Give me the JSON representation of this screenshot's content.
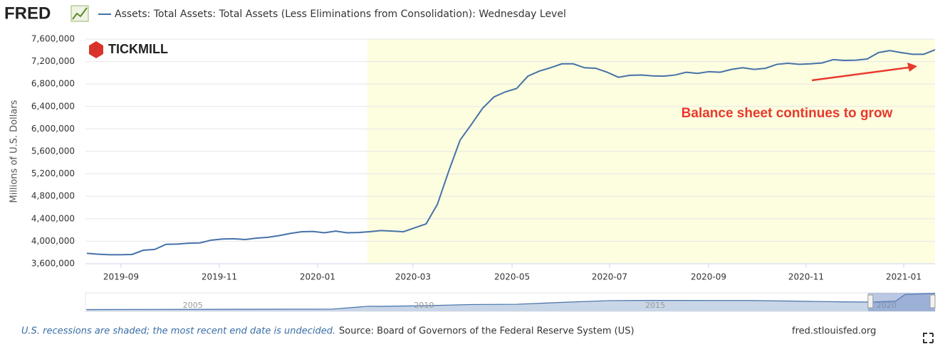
{
  "header": {
    "logo": "FRED",
    "brand": "TICKMILL"
  },
  "chart_data": {
    "type": "line",
    "y_label": "Millions of U.S. Dollars",
    "annotation": "Balance sheet continues to grow",
    "series": [
      {
        "name": "Assets: Total Assets: Total Assets (Less Eliminations from Consolidation): Wednesday Level",
        "color": "#4572a7",
        "values": [
          3785000,
          3770000,
          3760000,
          3760000,
          3765000,
          3840000,
          3855000,
          3945000,
          3950000,
          3965000,
          3970000,
          4020000,
          4040000,
          4045000,
          4030000,
          4055000,
          4070000,
          4100000,
          4140000,
          4170000,
          4175000,
          4150000,
          4180000,
          4150000,
          4155000,
          4170000,
          4190000,
          4180000,
          4170000,
          4240000,
          4310000,
          4660000,
          5250000,
          5800000,
          6080000,
          6370000,
          6570000,
          6660000,
          6720000,
          6940000,
          7030000,
          7090000,
          7160000,
          7160000,
          7090000,
          7080000,
          7010000,
          6920000,
          6955000,
          6960000,
          6945000,
          6940000,
          6960000,
          7010000,
          6990000,
          7020000,
          7010000,
          7060000,
          7090000,
          7060000,
          7080000,
          7150000,
          7170000,
          7150000,
          7160000,
          7175000,
          7235000,
          7220000,
          7225000,
          7245000,
          7360000,
          7395000,
          7360000,
          7330000,
          7330000,
          7410000
        ]
      }
    ],
    "xlim": [
      0,
      75
    ],
    "xticks": [
      {
        "value": 3.02,
        "label": "2019-09"
      },
      {
        "value": 11.71,
        "label": "2019-11"
      },
      {
        "value": 20.4,
        "label": "2020-01"
      },
      {
        "value": 28.84,
        "label": "2020-03"
      },
      {
        "value": 37.6,
        "label": "2020-05"
      },
      {
        "value": 46.22,
        "label": "2020-07"
      },
      {
        "value": 54.97,
        "label": "2020-09"
      },
      {
        "value": 63.6,
        "label": "2020-11"
      },
      {
        "value": 72.23,
        "label": "2021-01"
      }
    ],
    "ylim": [
      3600000,
      7600000
    ],
    "yticks": [
      {
        "value": 3600000,
        "label": "3,600,000"
      },
      {
        "value": 4000000,
        "label": "4,000,000"
      },
      {
        "value": 4400000,
        "label": "4,400,000"
      },
      {
        "value": 4800000,
        "label": "4,800,000"
      },
      {
        "value": 5200000,
        "label": "5,200,000"
      },
      {
        "value": 5600000,
        "label": "5,600,000"
      },
      {
        "value": 6000000,
        "label": "6,000,000"
      },
      {
        "value": 6400000,
        "label": "6,400,000"
      },
      {
        "value": 6800000,
        "label": "6,800,000"
      },
      {
        "value": 7200000,
        "label": "7,200,000"
      },
      {
        "value": 7600000,
        "label": "7,600,000"
      }
    ],
    "grid": true,
    "shaded": {
      "start": 24.81,
      "end": 75,
      "color": "#fdfde0"
    }
  },
  "navigator": {
    "x": [
      2002.7,
      2004,
      2006,
      2008,
      2008.8,
      2009,
      2010,
      2011,
      2012,
      2013,
      2014,
      2015,
      2016,
      2017,
      2018,
      2019,
      2019.7,
      2020.2,
      2020.4,
      2021,
      2021.05
    ],
    "values": [
      720000,
      780000,
      850000,
      900000,
      2100000,
      2050000,
      2300000,
      2800000,
      2900000,
      3700000,
      4400000,
      4500000,
      4450000,
      4450000,
      4200000,
      3900000,
      3800000,
      4200000,
      6900000,
      7300000,
      7410000
    ],
    "xlim": [
      2002.68,
      2021.05
    ],
    "ylim": [
      0,
      7600000
    ],
    "xticks": [
      2005,
      2010,
      2015,
      2020
    ],
    "selection": [
      2019.6,
      2021.05
    ]
  },
  "footer": {
    "note": "U.S. recessions are shaded; the most recent end date is undecided.",
    "source": "Source: Board of Governors of the Federal Reserve System (US)",
    "site": "fred.stlouisfed.org"
  }
}
